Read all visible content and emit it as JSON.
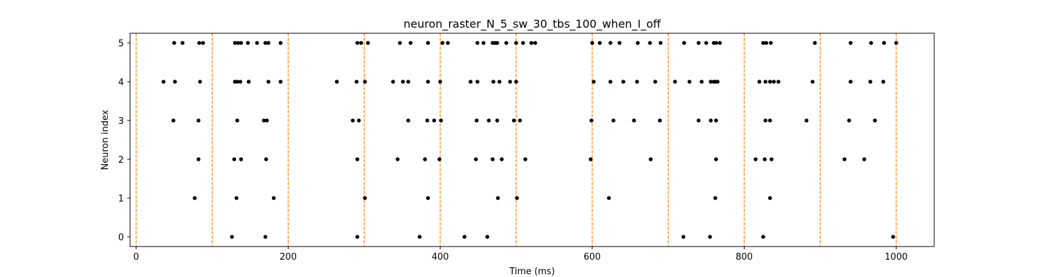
{
  "chart_data": {
    "type": "scatter",
    "title": "neuron_raster_N_5_sw_30_tbs_100_when_I_off",
    "xlabel": "Time (ms)",
    "ylabel": "Neuron index",
    "xlim": [
      -8,
      1050
    ],
    "ylim": [
      -0.25,
      5.25
    ],
    "xticks": [
      0,
      200,
      400,
      600,
      800,
      1000
    ],
    "yticks": [
      0,
      1,
      2,
      3,
      4,
      5
    ],
    "marker_color": "#000000",
    "vline_color": "#ff7f0e",
    "vlines": [
      0,
      100,
      200,
      300,
      400,
      500,
      600,
      700,
      800,
      900,
      1000
    ],
    "spikes": [
      {
        "neuron": 5,
        "times": [
          50,
          61,
          83,
          88,
          130,
          134,
          138,
          147,
          159,
          170,
          174,
          190,
          291,
          296,
          305,
          347,
          361,
          384,
          403,
          410,
          449,
          457,
          469,
          472,
          475,
          487,
          500,
          509,
          520,
          525,
          600,
          610,
          624,
          636,
          660,
          676,
          690,
          721,
          740,
          750,
          760,
          763,
          768,
          825,
          829,
          835,
          893,
          940,
          967,
          984,
          1000
        ]
      },
      {
        "neuron": 4,
        "times": [
          36,
          51,
          84,
          130,
          133,
          137,
          148,
          174,
          190,
          264,
          290,
          301,
          338,
          351,
          358,
          384,
          400,
          440,
          449,
          470,
          478,
          492,
          500,
          602,
          624,
          641,
          659,
          683,
          709,
          728,
          744,
          756,
          760,
          762,
          765,
          820,
          828,
          834,
          839,
          845,
          890,
          940,
          966,
          983
        ]
      },
      {
        "neuron": 3,
        "times": [
          49,
          82,
          133,
          168,
          172,
          285,
          293,
          358,
          383,
          392,
          401,
          448,
          464,
          475,
          497,
          505,
          599,
          628,
          655,
          689,
          740,
          756,
          763,
          828,
          834,
          882,
          938,
          972
        ]
      },
      {
        "neuron": 2,
        "times": [
          82,
          129,
          138,
          171,
          291,
          344,
          380,
          399,
          447,
          469,
          481,
          512,
          598,
          677,
          763,
          815,
          827,
          836,
          932,
          958
        ]
      },
      {
        "neuron": 1,
        "times": [
          77,
          132,
          181,
          301,
          384,
          476,
          501,
          622,
          762,
          834
        ]
      },
      {
        "neuron": 0,
        "times": [
          126,
          170,
          291,
          373,
          432,
          462,
          720,
          755,
          825,
          996
        ]
      }
    ]
  }
}
